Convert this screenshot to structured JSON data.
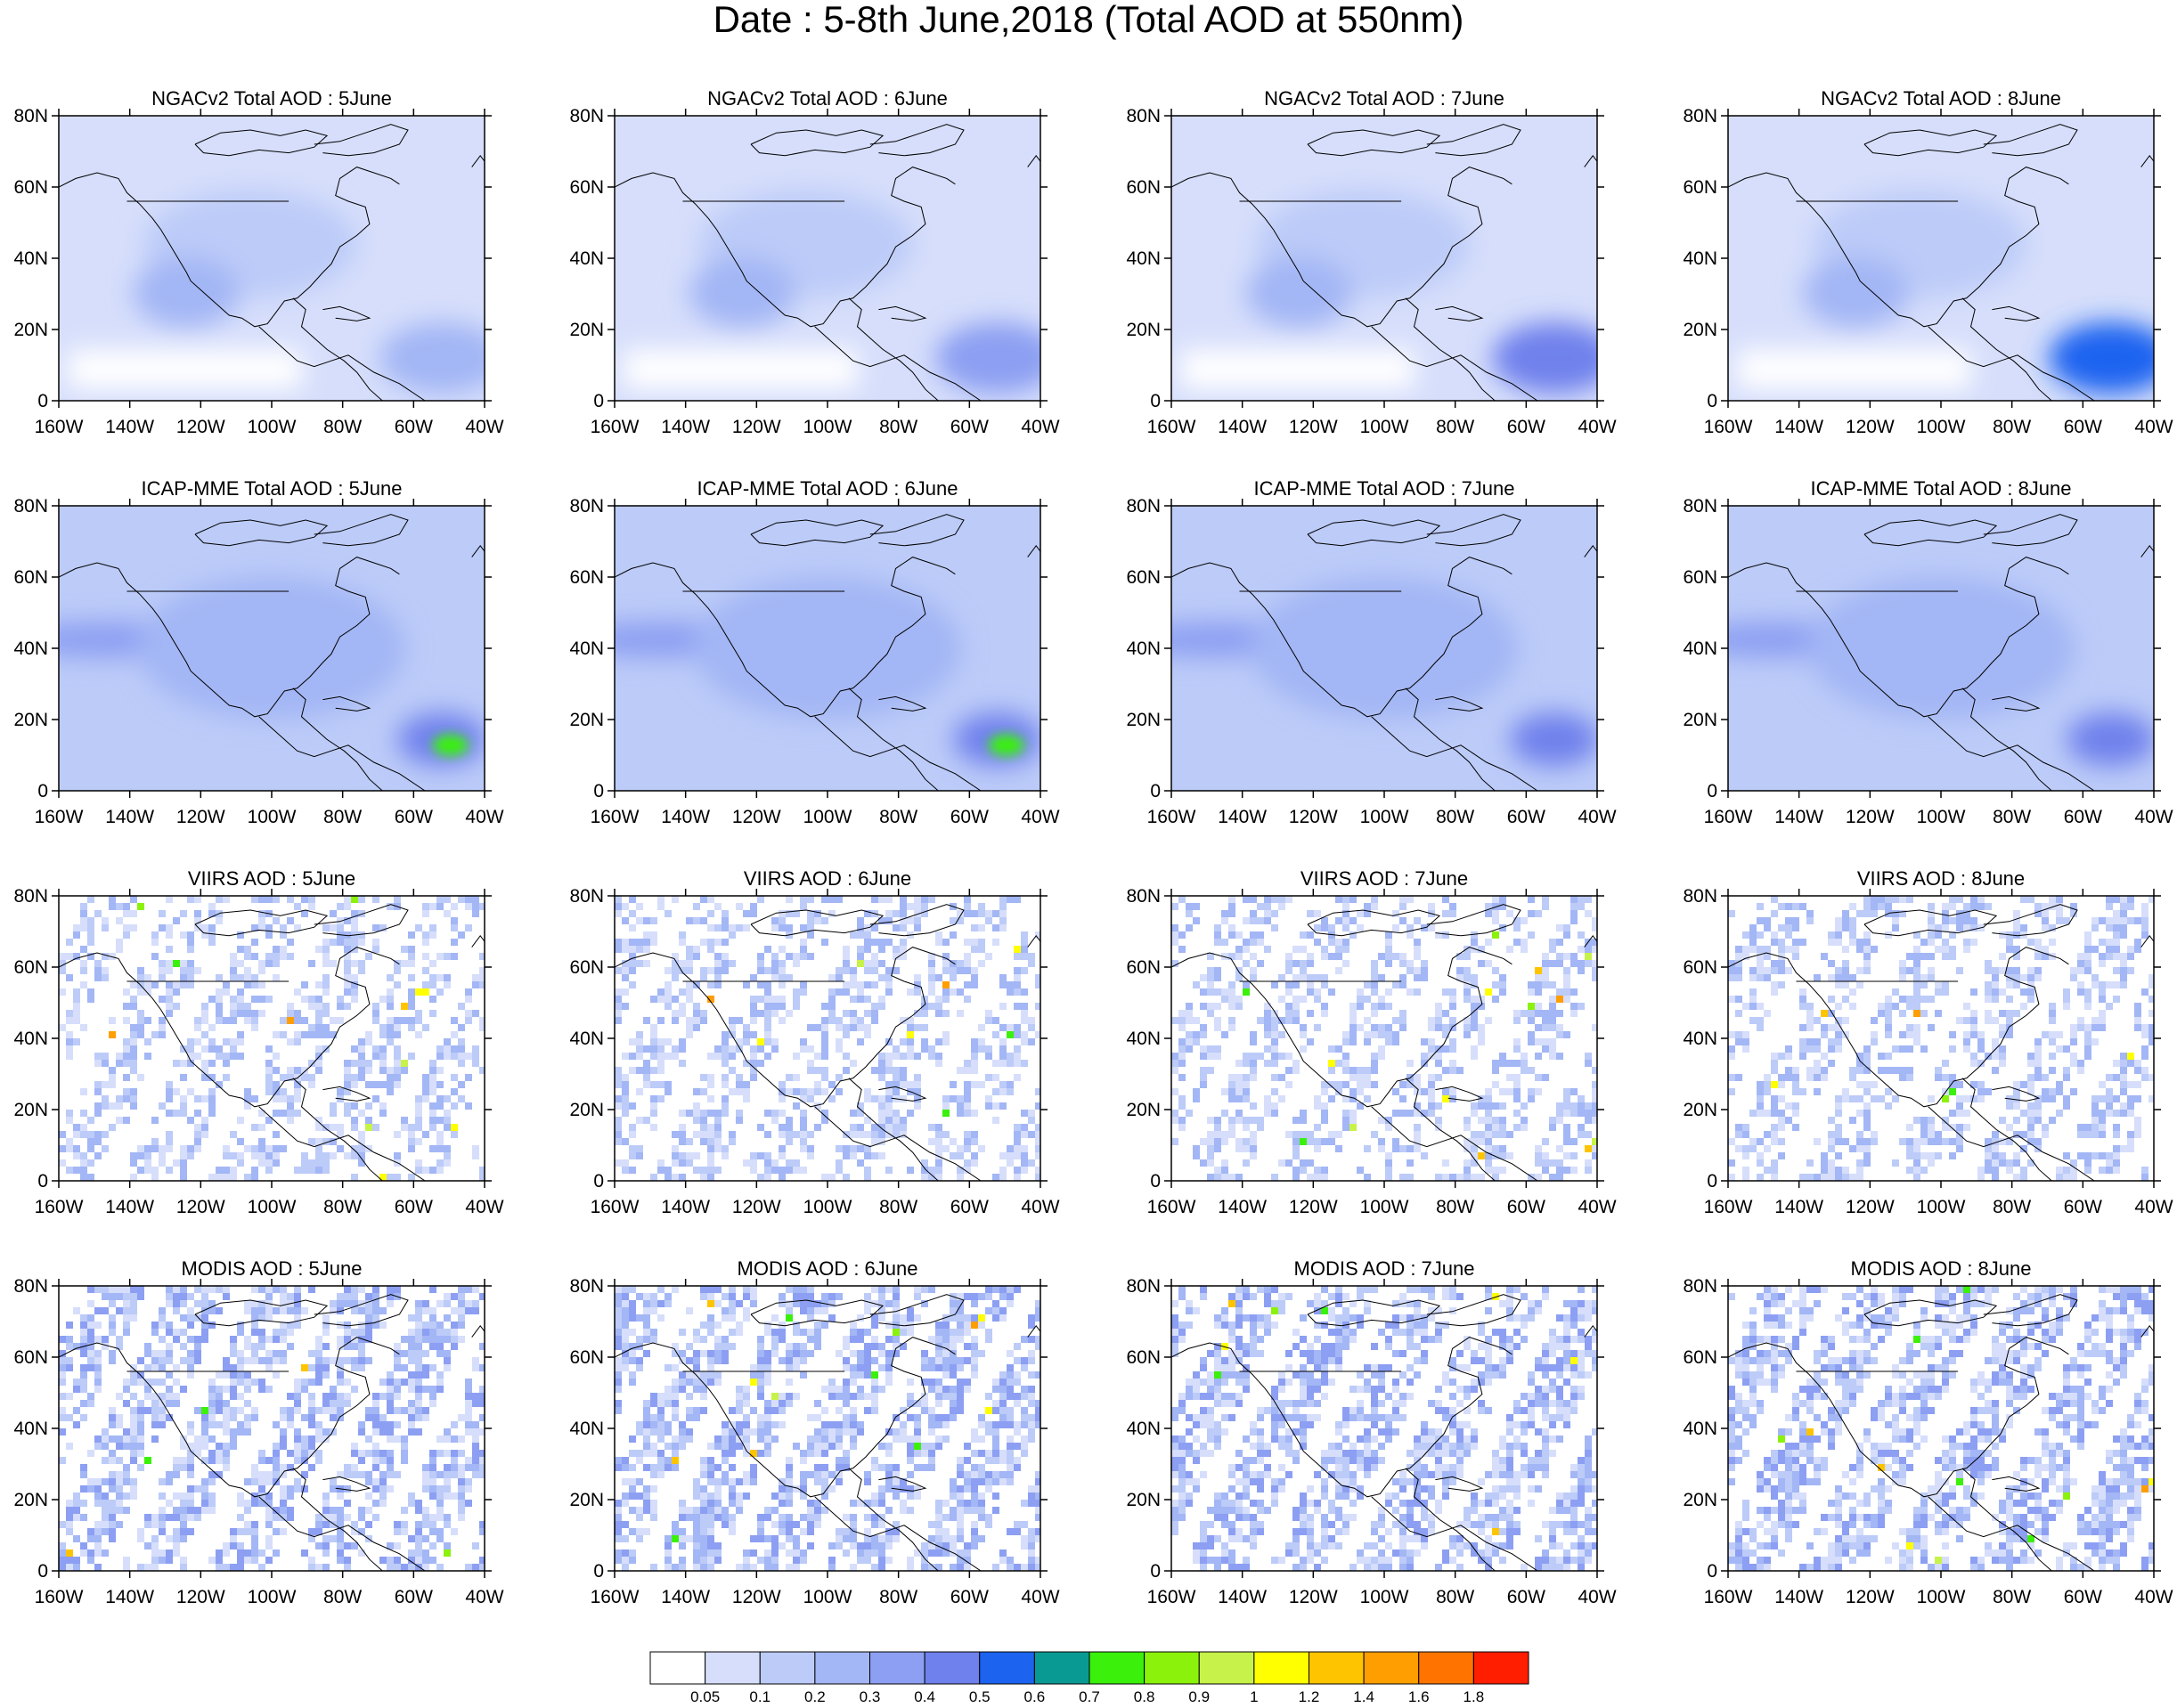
{
  "title": "Date : 5-8th June,2018 (Total AOD at 550nm)",
  "rows": [
    {
      "product": "NGACv2 Total AOD",
      "panels": [
        "NGACv2 Total AOD : 5June",
        "NGACv2 Total AOD : 6June",
        "NGACv2 Total AOD : 7June",
        "NGACv2 Total AOD : 8June"
      ]
    },
    {
      "product": "ICAP-MME Total AOD",
      "panels": [
        "ICAP-MME Total AOD : 5June",
        "ICAP-MME Total AOD : 6June",
        "ICAP-MME Total AOD : 7June",
        "ICAP-MME Total AOD : 8June"
      ]
    },
    {
      "product": "VIIRS AOD",
      "panels": [
        "VIIRS AOD : 5June",
        "VIIRS AOD : 6June",
        "VIIRS AOD : 7June",
        "VIIRS AOD : 8June"
      ]
    },
    {
      "product": "MODIS AOD",
      "panels": [
        "MODIS AOD : 5June",
        "MODIS AOD : 6June",
        "MODIS AOD : 7June",
        "MODIS AOD : 8June"
      ]
    }
  ],
  "map": {
    "lat_labels": [
      "80N",
      "60N",
      "40N",
      "20N",
      "0"
    ],
    "lon_labels": [
      "160W",
      "140W",
      "120W",
      "100W",
      "80W",
      "60W",
      "40W"
    ],
    "lat_range": [
      0,
      80
    ],
    "lon_range": [
      -160,
      -40
    ]
  },
  "colorbar": {
    "labels": [
      "0.05",
      "0.1",
      "0.2",
      "0.3",
      "0.4",
      "0.5",
      "0.6",
      "0.7",
      "0.8",
      "0.9",
      "1",
      "1.2",
      "1.4",
      "1.6",
      "1.8"
    ],
    "colors": [
      "#ffffff",
      "#d6defb",
      "#bccbf8",
      "#a3b6f5",
      "#8c9ff2",
      "#6f81ec",
      "#1c63f0",
      "#0a9a94",
      "#3bf00a",
      "#8bf20b",
      "#c7f24a",
      "#ffff00",
      "#ffc400",
      "#ff9e00",
      "#ff7400",
      "#ff1e00"
    ]
  }
}
